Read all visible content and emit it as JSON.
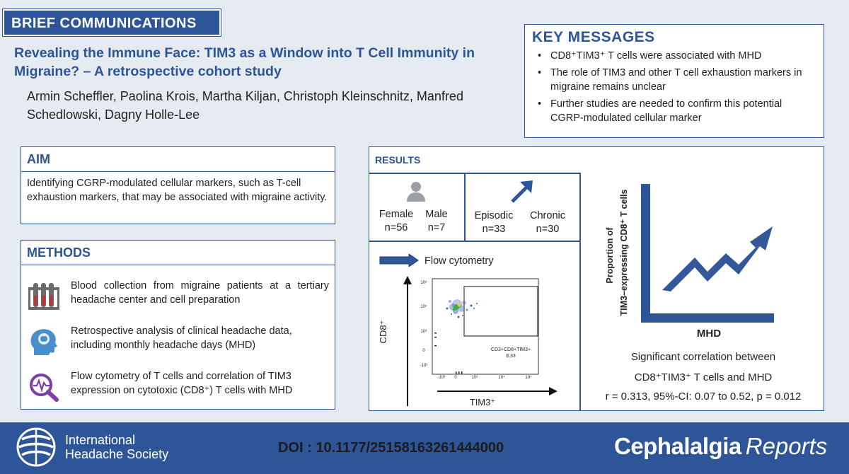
{
  "banner": "BRIEF COMMUNICATIONS",
  "title": "Revealing the Immune Face: TIM3 as a Window into T Cell Immunity in Migraine? – A retrospective cohort study",
  "authors": "Armin Scheffler, Paolina Krois, Martha Kiljan, Christoph Kleinschnitz, Manfred Schedlowski, Dagny Holle-Lee",
  "key_messages": {
    "heading": "KEY MESSAGES",
    "items": [
      "CD8⁺TIM3⁺ T cells were associated with MHD",
      "The role of TIM3 and other T cell exhaustion markers in migraine remains unclear",
      "Further studies are needed to confirm this potential CGRP-modulated cellular marker"
    ]
  },
  "aim": {
    "heading": "AIM",
    "text": "Identifying CGRP-modulated cellular markers, such as T-cell exhaustion markers, that may be associated with migraine activity."
  },
  "methods": {
    "heading": "METHODS",
    "items": [
      {
        "icon": "test-tubes-icon",
        "text": "Blood collection from migraine patients at a tertiary headache center and cell preparation"
      },
      {
        "icon": "brain-head-icon",
        "text": "Retrospective analysis of clinical headache data, including monthly headache days (MHD)"
      },
      {
        "icon": "magnifier-pulse-icon",
        "text": "Flow cytometry of T cells and correlation of TIM3 expression on cytotoxic (CD8⁺) T cells with MHD"
      }
    ]
  },
  "results": {
    "heading": "RESULTS",
    "female_label": "Female",
    "female_n": "n=56",
    "male_label": "Male",
    "male_n": "n=7",
    "episodic_label": "Episodic",
    "episodic_n": "n=33",
    "chronic_label": "Chronic",
    "chronic_n": "n=30",
    "flow_label": "Flow cytometry",
    "flow_y": "CD8⁺",
    "flow_x": "TIM3⁺",
    "gate_label": "CD3+CD8+TIM3+",
    "gate_value": "8,33",
    "ticks_y": [
      "10⁵",
      "10⁴",
      "10³",
      "0",
      "-10³"
    ],
    "ticks_x": [
      "-10³",
      "0",
      "10³",
      "10⁴",
      "10⁵"
    ],
    "trend_ylabel_1": "Proportion of",
    "trend_ylabel_2": "TIM3–expressing CD8⁺ T cells",
    "trend_xlabel": "MHD",
    "sig_1": "Significant correlation between",
    "sig_2": "CD8⁺TIM3⁺ T cells and MHD",
    "stats": "r = 0.313, 95%-CI: 0.07 to 0.52, p = 0.012"
  },
  "footer": {
    "society_line1": "International",
    "society_line2": "Headache Society",
    "doi": "DOI : 10.1177/25158163261444000",
    "journal_bold": "Cephalalgia",
    "journal_italic": "Reports"
  },
  "colors": {
    "accent": "#2e5597",
    "background": "#e6ebf2",
    "green": "#3cae3c"
  }
}
